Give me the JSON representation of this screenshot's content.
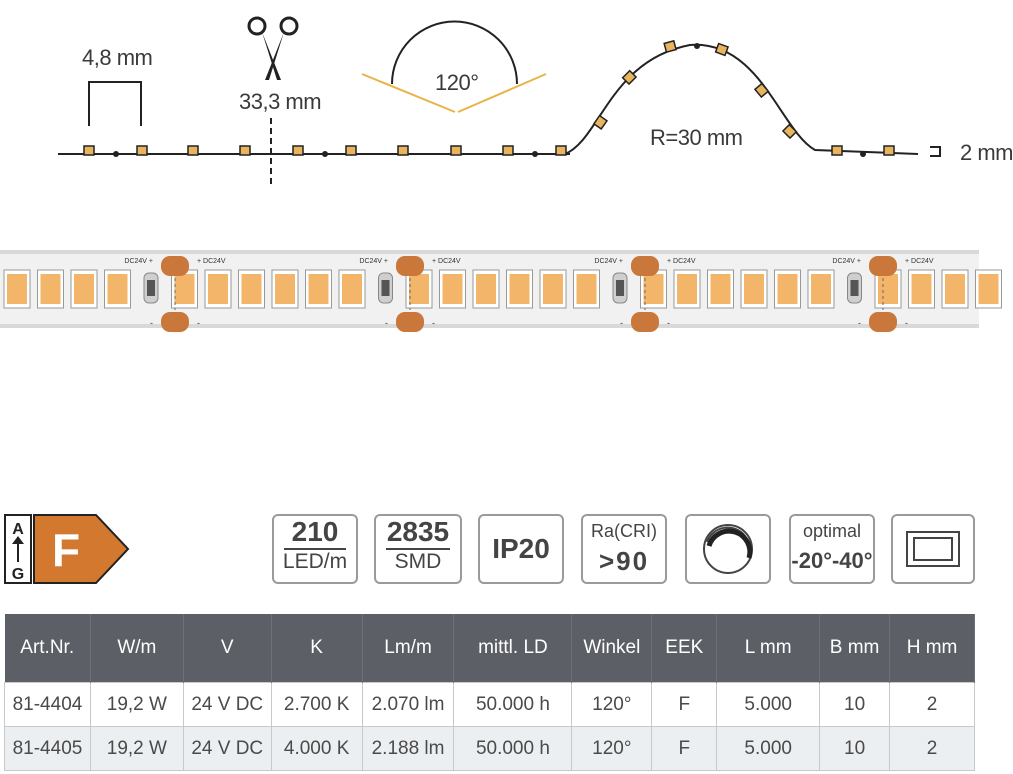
{
  "diagram": {
    "pitch_label": "4,8 mm",
    "cut_label": "33,3 mm",
    "angle_label": "120°",
    "radius_label": "R=30 mm",
    "thickness_label": "2 mm",
    "scissors_icon": "scissors-icon"
  },
  "strip": {
    "plus_label": "DC24V +",
    "plus_label_right": "+ DC24V",
    "minus": "-",
    "led_color": "#f2b56a",
    "pad_color": "#c9773a"
  },
  "energy": {
    "class": "F",
    "scale_top": "A",
    "scale_bottom": "G",
    "color": "#d2782f"
  },
  "badges": [
    {
      "top": "210",
      "bottom": "LED/m"
    },
    {
      "top": "2835",
      "bottom": "SMD"
    },
    {
      "single": "IP20"
    },
    {
      "top": "Ra(CRI)",
      "bottom": ">90"
    },
    {
      "icon": "dimmable-icon"
    },
    {
      "top": "optimal",
      "bottom": "-20°-40°"
    },
    {
      "icon": "rectangle-profile-icon"
    }
  ],
  "table": {
    "headers": [
      "Art.Nr.",
      "W/m",
      "V",
      "K",
      "Lm/m",
      "mittl. LD",
      "Winkel",
      "EEK",
      "L mm",
      "B mm",
      "H mm"
    ],
    "rows": [
      [
        "81-4404",
        "19,2 W",
        "24 V DC",
        "2.700 K",
        "2.070 lm",
        "50.000 h",
        "120°",
        "F",
        "5.000",
        "10",
        "2"
      ],
      [
        "81-4405",
        "19,2 W",
        "24 V DC",
        "4.000 K",
        "2.188 lm",
        "50.000 h",
        "120°",
        "F",
        "5.000",
        "10",
        "2"
      ]
    ]
  }
}
